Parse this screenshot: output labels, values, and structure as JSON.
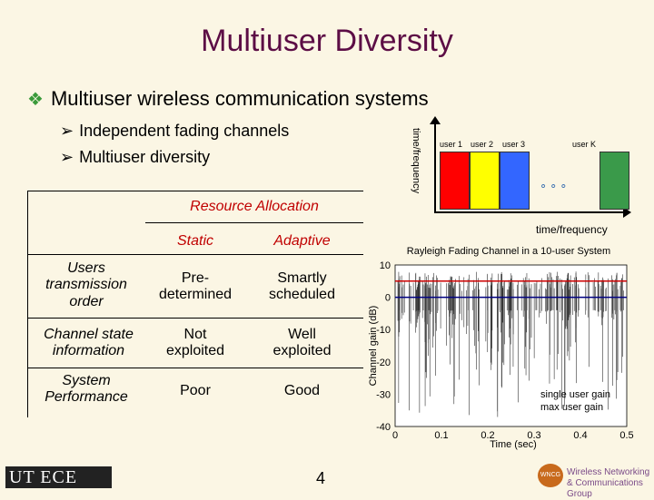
{
  "title": "Multiuser Diversity",
  "bullet": "Multiuser wireless communication systems",
  "sub_bullets": [
    "Independent fading channels",
    "Multiuser diversity"
  ],
  "table": {
    "header": "Resource Allocation",
    "cols": [
      "Static",
      "Adaptive"
    ],
    "rows": [
      {
        "label": "Users transmission order",
        "static": "Pre-determined",
        "adaptive": "Smartly scheduled"
      },
      {
        "label": "Channel state information",
        "static": "Not exploited",
        "adaptive": "Well exploited"
      },
      {
        "label": "System Performance",
        "static": "Poor",
        "adaptive": "Good"
      }
    ]
  },
  "freq_diagram": {
    "y_label": "time/frequency",
    "x_label": "time/frequency",
    "users": [
      "user 1",
      "user 2",
      "user 3",
      "user K"
    ],
    "colors": [
      "#ff0000",
      "#ffff00",
      "#3366ff",
      "#3a9a4a"
    ]
  },
  "chart_data": {
    "type": "line",
    "title": "Rayleigh Fading Channel in a 10-user System",
    "xlabel": "Time (sec)",
    "ylabel": "Channel gain (dB)",
    "xlim": [
      0,
      0.5
    ],
    "ylim": [
      -40,
      10
    ],
    "x_ticks": [
      "0",
      "0.1",
      "0.2",
      "0.3",
      "0.4",
      "0.5"
    ],
    "y_ticks": [
      "10",
      "0",
      "-10",
      "-20",
      "-30",
      "-40"
    ],
    "series": [
      {
        "name": "single user gain",
        "color": "#000080",
        "mean_db": 0
      },
      {
        "name": "max user gain",
        "color": "#cc0000",
        "mean_db": 5
      }
    ]
  },
  "page_number": "4",
  "footer": {
    "ut_logo": "UT ECE",
    "wncg_badge": "WNCG",
    "wncg_name": "Wireless Networking & Communications Group"
  }
}
